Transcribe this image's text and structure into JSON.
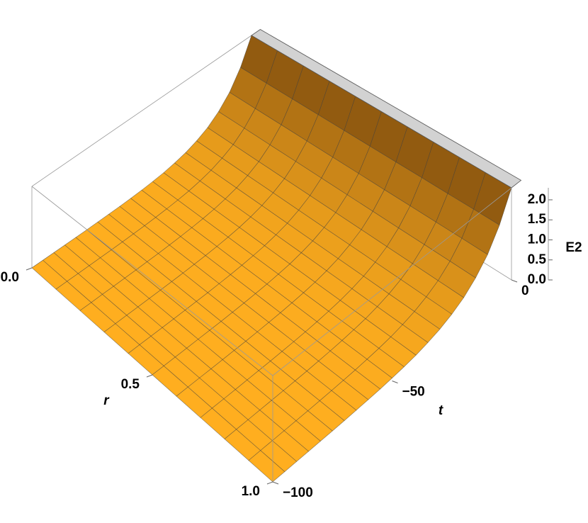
{
  "chart_data": {
    "type": "surface",
    "x_label": "r",
    "y_label": "t",
    "z_label": "E2",
    "color": "#ffae1f",
    "steep_color": "#5a3008",
    "xlim": [
      0,
      1
    ],
    "xticks": [
      {
        "value": 0,
        "label": "0.0"
      },
      {
        "value": 0.5,
        "label": "0.5"
      },
      {
        "value": 1,
        "label": "1.0"
      }
    ],
    "ylim": [
      -100,
      0
    ],
    "yticks": [
      {
        "value": -100,
        "label": "−100"
      },
      {
        "value": -50,
        "label": "−50"
      },
      {
        "value": 0,
        "label": "0"
      }
    ],
    "zlim": [
      0,
      2.3
    ],
    "zticks": [
      {
        "value": 0,
        "label": "0.0"
      },
      {
        "value": 0.5,
        "label": "0.5"
      },
      {
        "value": 1,
        "label": "1.0"
      },
      {
        "value": 1.5,
        "label": "1.5"
      },
      {
        "value": 2,
        "label": "2.0"
      }
    ],
    "mesh_r": [
      0,
      0.1,
      0.2,
      0.3,
      0.4,
      0.5,
      0.6,
      0.7,
      0.8,
      0.9,
      1
    ],
    "t": [
      -100,
      -95,
      -90,
      -85,
      -80,
      -75,
      -70,
      -65,
      -60,
      -55,
      -50,
      -45,
      -40,
      -35,
      -30,
      -25,
      -20,
      -15,
      -10,
      -5,
      0
    ],
    "values": [
      0.002,
      0.003,
      0.004,
      0.005,
      0.008,
      0.011,
      0.015,
      0.022,
      0.032,
      0.045,
      0.065,
      0.093,
      0.13,
      0.19,
      0.27,
      0.39,
      0.55,
      0.79,
      1.12,
      1.61,
      2.3
    ]
  }
}
